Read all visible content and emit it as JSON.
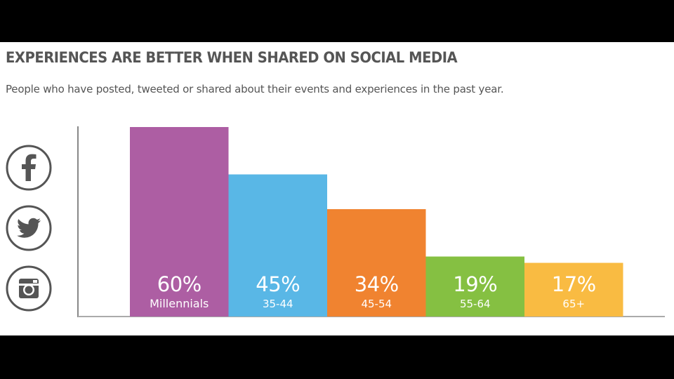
{
  "header": {
    "title": "EXPERIENCES ARE BETTER WHEN SHARED ON SOCIAL MEDIA",
    "subtitle": "People who have posted, tweeted or shared about their events and experiences in the past year."
  },
  "icons": [
    "facebook-icon",
    "twitter-icon",
    "instagram-icon"
  ],
  "chart_data": {
    "type": "bar",
    "title": "EXPERIENCES ARE BETTER WHEN SHARED ON SOCIAL MEDIA",
    "subtitle": "People who have posted, tweeted or shared about their events and experiences in the past year.",
    "categories": [
      "Millennials",
      "35-44",
      "45-54",
      "55-64",
      "65+"
    ],
    "values": [
      60,
      45,
      34,
      19,
      17
    ],
    "value_labels": [
      "60%",
      "45%",
      "34%",
      "19%",
      "17%"
    ],
    "colors": [
      "#ad5ea3",
      "#59b7e6",
      "#f08330",
      "#85c042",
      "#f9bb42"
    ],
    "ylim": [
      0,
      60
    ],
    "grid": false,
    "legend": "none"
  }
}
